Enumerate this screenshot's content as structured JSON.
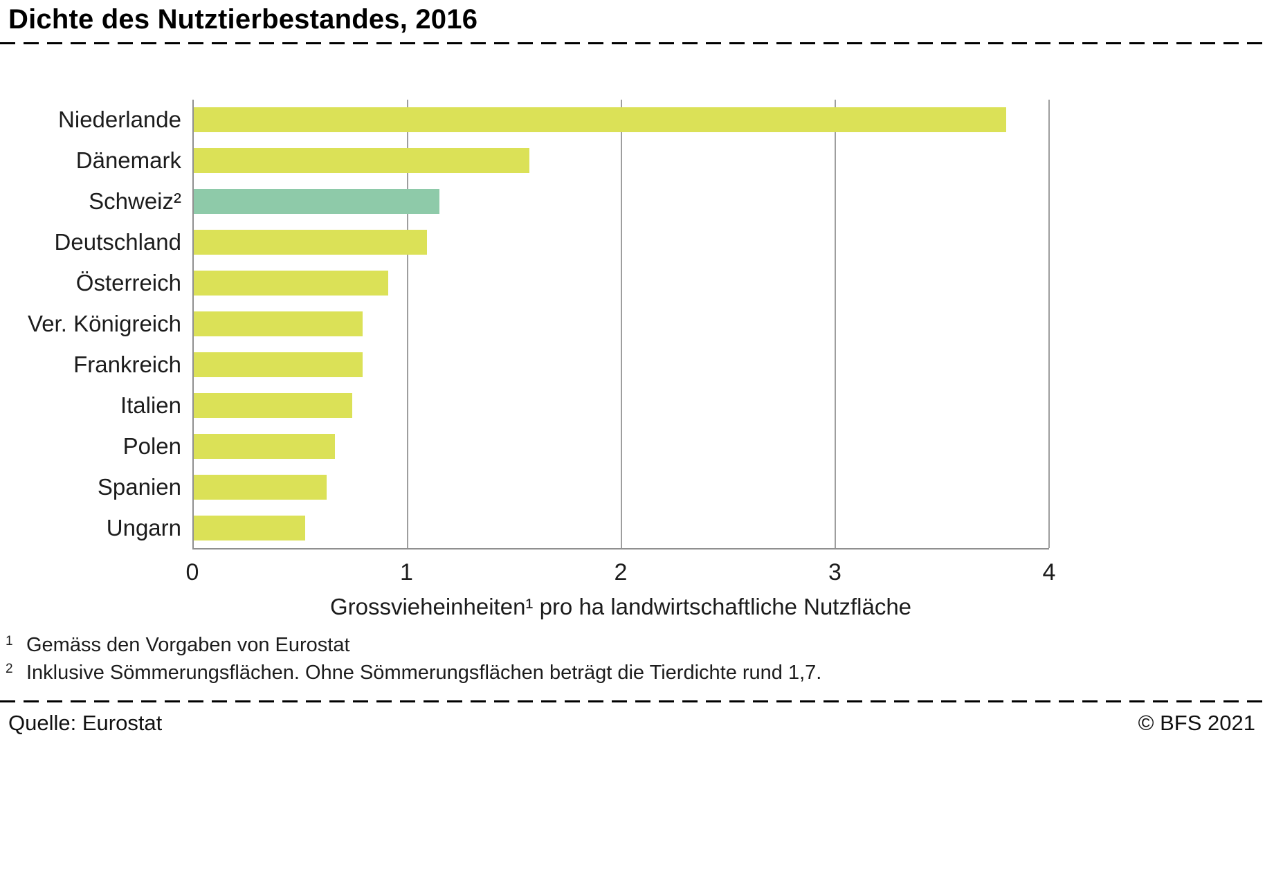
{
  "header": {
    "title": "Dichte des Nutztierbestandes, 2016"
  },
  "chart_data": {
    "type": "bar",
    "orientation": "horizontal",
    "title": "Dichte des Nutztierbestandes, 2016",
    "categories": [
      "Niederlande",
      "Dänemark",
      "Schweiz²",
      "Deutschland",
      "Österreich",
      "Ver. Königreich",
      "Frankreich",
      "Italien",
      "Polen",
      "Spanien",
      "Ungarn"
    ],
    "values": [
      3.8,
      1.57,
      1.15,
      1.09,
      0.91,
      0.79,
      0.79,
      0.74,
      0.66,
      0.62,
      0.52
    ],
    "highlight_category": "Schweiz²",
    "xlabel": "Grossvieheinheiten¹ pro ha landwirtschaftliche Nutzfläche",
    "xlim": [
      0,
      4
    ],
    "xticks": [
      0,
      1,
      2,
      3,
      4
    ],
    "grid": "vertical",
    "legend": "none",
    "colors": {
      "bar": "#dbe157",
      "highlight": "#8ecaa9",
      "gridline": "#9e9e9e",
      "axis": "#8f8f8f"
    }
  },
  "footnotes": [
    {
      "marker": "1",
      "text": "Gemäss den Vorgaben von Eurostat"
    },
    {
      "marker": "2",
      "text": "Inklusive Sömmerungsflächen. Ohne Sömmerungsflächen beträgt die Tierdichte rund 1,7."
    }
  ],
  "footer": {
    "source": "Quelle: Eurostat",
    "copyright": "© BFS 2021"
  }
}
